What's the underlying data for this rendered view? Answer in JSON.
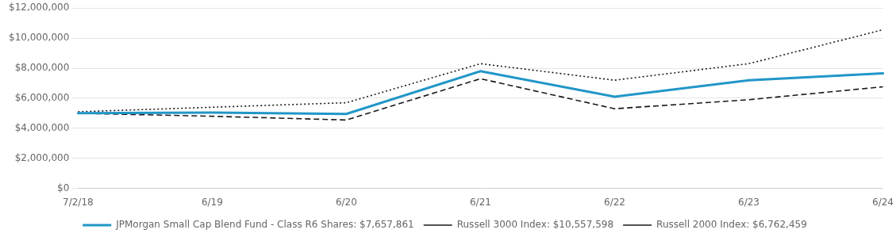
{
  "chart_data": {
    "type": "line",
    "categories": [
      "7/2/18",
      "6/19",
      "6/20",
      "6/21",
      "6/22",
      "6/23",
      "6/24"
    ],
    "series": [
      {
        "name": "JPMorgan Small Cap Blend Fund - Class R6 Shares: $7,657,861",
        "color": "#2196C8",
        "line_style": "solid",
        "values": [
          5000000,
          5050000,
          4950000,
          7800000,
          6100000,
          7200000,
          7657861
        ]
      },
      {
        "name": "Russell 3000 Index: $10,557,598",
        "color": "#1a1a1a",
        "line_style": "dotted",
        "values": [
          5100000,
          5400000,
          5700000,
          8300000,
          7200000,
          8300000,
          10557598
        ]
      },
      {
        "name": "Russell 2000 Index: $6,762,459",
        "color": "#1a1a1a",
        "line_style": "dashed",
        "values": [
          5000000,
          4800000,
          4550000,
          7300000,
          5300000,
          5900000,
          6762459
        ]
      }
    ],
    "ylim": [
      0,
      12000000
    ],
    "yticks": [
      {
        "value": 0,
        "label": "$0"
      },
      {
        "value": 2000000,
        "label": "$2,000,000"
      },
      {
        "value": 4000000,
        "label": "$4,000,000"
      },
      {
        "value": 6000000,
        "label": "$6,000,000"
      },
      {
        "value": 8000000,
        "label": "$8,000,000"
      },
      {
        "value": 10000000,
        "label": "$10,000,000"
      },
      {
        "value": 12000000,
        "label": "$12,000,000"
      }
    ],
    "grid": true,
    "legend": "bottom"
  }
}
